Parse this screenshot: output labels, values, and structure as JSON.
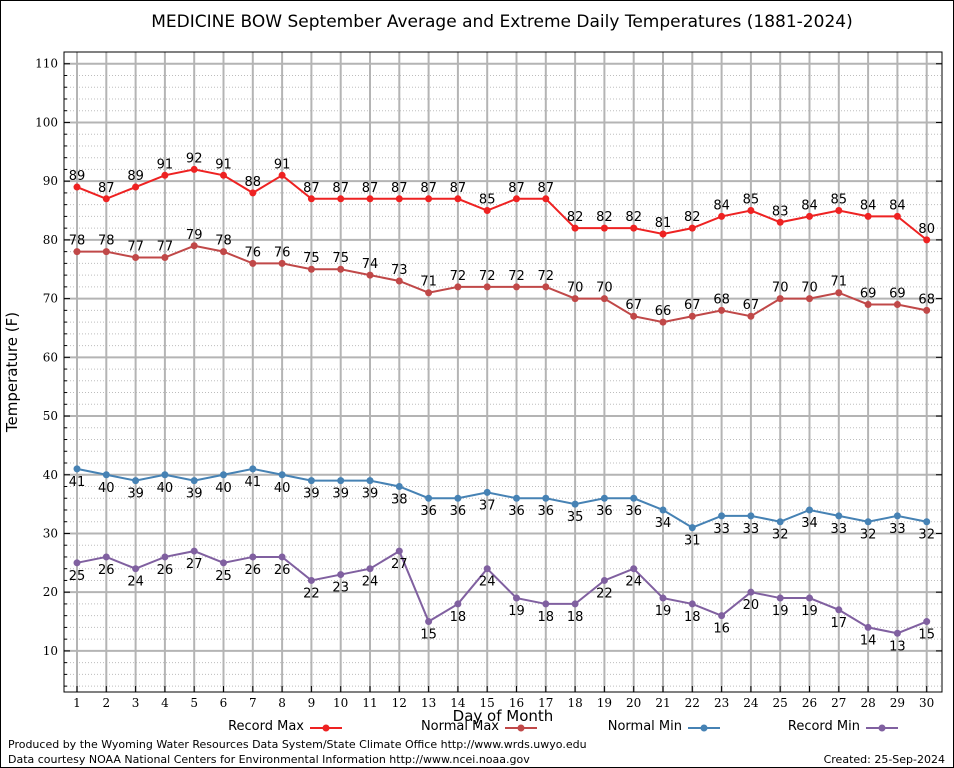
{
  "chart_data": {
    "type": "line",
    "title": "MEDICINE BOW September Average and Extreme Daily Temperatures (1881-2024)",
    "xlabel": "Day of Month",
    "ylabel": "Temperature (F)",
    "ylim": [
      3,
      112
    ],
    "yticks": [
      10,
      20,
      30,
      40,
      50,
      60,
      70,
      80,
      90,
      100,
      110
    ],
    "grid": true,
    "legend_position": "bottom",
    "x": [
      1,
      2,
      3,
      4,
      5,
      6,
      7,
      8,
      9,
      10,
      11,
      12,
      13,
      14,
      15,
      16,
      17,
      18,
      19,
      20,
      21,
      22,
      23,
      24,
      25,
      26,
      27,
      28,
      29,
      30
    ],
    "series": [
      {
        "name": "Record Max",
        "color": "#ee2222",
        "label_position": "above",
        "values": [
          89,
          87,
          89,
          91,
          92,
          91,
          88,
          91,
          87,
          87,
          87,
          87,
          87,
          87,
          85,
          87,
          87,
          82,
          82,
          82,
          81,
          82,
          84,
          85,
          83,
          84,
          85,
          84,
          84,
          80
        ]
      },
      {
        "name": "Normal Max",
        "color": "#c04848",
        "label_position": "above",
        "values": [
          78,
          78,
          77,
          77,
          79,
          78,
          76,
          76,
          75,
          75,
          74,
          73,
          71,
          72,
          72,
          72,
          72,
          70,
          70,
          67,
          66,
          67,
          68,
          67,
          70,
          70,
          71,
          69,
          69,
          68
        ]
      },
      {
        "name": "Normal Min",
        "color": "#4682b4",
        "label_position": "below",
        "values": [
          41,
          40,
          39,
          40,
          39,
          40,
          41,
          40,
          39,
          39,
          39,
          38,
          36,
          36,
          37,
          36,
          36,
          35,
          36,
          36,
          34,
          31,
          33,
          33,
          32,
          34,
          33,
          32,
          33,
          32
        ]
      },
      {
        "name": "Record Min",
        "color": "#8060a0",
        "label_position": "below",
        "values": [
          25,
          26,
          24,
          26,
          27,
          25,
          26,
          26,
          22,
          23,
          24,
          27,
          15,
          18,
          24,
          19,
          18,
          18,
          22,
          24,
          19,
          18,
          16,
          20,
          19,
          19,
          17,
          14,
          13,
          15
        ]
      }
    ]
  },
  "footer": {
    "line1": "Produced by the Wyoming Water Resources Data System/State Climate Office http://www.wrds.uwyo.edu",
    "line2": "Data courtesy NOAA National Centers for Environmental Information http://www.ncei.noaa.gov",
    "created": "Created:  25-Sep-2024"
  }
}
